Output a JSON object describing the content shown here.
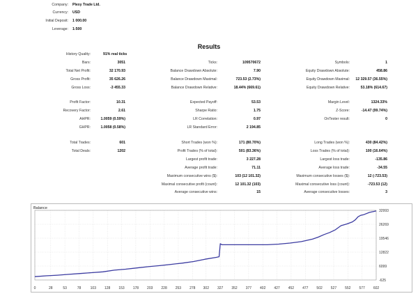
{
  "header": {
    "rows": [
      {
        "label": "Company:",
        "value": "Plexy Trade Ltd."
      },
      {
        "label": "Currency:",
        "value": "USD"
      },
      {
        "label": "Initial Deposit:",
        "value": "1 000.00"
      },
      {
        "label": "Leverage:",
        "value": "1:500"
      }
    ]
  },
  "results_title": "Results",
  "stats": {
    "history_quality": {
      "label": "History Quality:",
      "value": "91% real ticks"
    },
    "block1": [
      [
        {
          "label": "Bars:",
          "value": "3051"
        },
        {
          "label": "Ticks:",
          "value": "109570672"
        },
        {
          "label": "Symbols:",
          "value": "1"
        }
      ],
      [
        {
          "label": "Total Net Profit:",
          "value": "32 170.93"
        },
        {
          "label": "Balance Drawdown Absolute:",
          "value": "7.90"
        },
        {
          "label": "Equity Drawdown Absolute:",
          "value": "458.86"
        }
      ],
      [
        {
          "label": "Gross Profit:",
          "value": "35 626.26"
        },
        {
          "label": "Balance Drawdown Maximal:",
          "value": "723.53 (2.73%)"
        },
        {
          "label": "Equity Drawdown Maximal:",
          "value": "12 329.57 (36.55%)"
        }
      ],
      [
        {
          "label": "Gross Loss:",
          "value": "-3 455.33"
        },
        {
          "label": "Balance Drawdown Relative:",
          "value": "18.44% (669.61)"
        },
        {
          "label": "Equity Drawdown Relative:",
          "value": "53.18% (614.67)"
        }
      ]
    ],
    "block2": [
      [
        {
          "label": "Profit Factor:",
          "value": "10.31"
        },
        {
          "label": "Expected Payoff:",
          "value": "53.53"
        },
        {
          "label": "Margin Level:",
          "value": "1324.33%"
        }
      ],
      [
        {
          "label": "Recovery Factor:",
          "value": "2.61"
        },
        {
          "label": "Sharpe Ratio:",
          "value": "1.75"
        },
        {
          "label": "Z-Score:",
          "value": "-14.47 (99.74%)"
        }
      ],
      [
        {
          "label": "AHPR:",
          "value": "1.0059 (0.59%)"
        },
        {
          "label": "LR Correlation:",
          "value": "0.97"
        },
        {
          "label": "OnTester result:",
          "value": "0"
        }
      ],
      [
        {
          "label": "GHPR:",
          "value": "1.0058 (0.58%)"
        },
        {
          "label": "LR Standard Error:",
          "value": "2 194.85"
        },
        {
          "label": "",
          "value": ""
        }
      ]
    ],
    "block3": [
      [
        {
          "label": "Total Trades:",
          "value": "601"
        },
        {
          "label": "Short Trades (won %):",
          "value": "171 (80.70%)"
        },
        {
          "label": "Long Trades (won %):",
          "value": "430 (84.42%)"
        }
      ],
      [
        {
          "label": "Total Deals:",
          "value": "1202"
        },
        {
          "label": "Profit Trades (% of total):",
          "value": "501 (83.36%)"
        },
        {
          "label": "Loss Trades (% of total):",
          "value": "100 (16.64%)"
        }
      ],
      [
        {
          "label": "",
          "value": ""
        },
        {
          "label": "Largest profit trade:",
          "value": "3 227.28"
        },
        {
          "label": "Largest loss trade:",
          "value": "-135.86"
        }
      ],
      [
        {
          "label": "",
          "value": ""
        },
        {
          "label": "Average profit trade:",
          "value": "71.11"
        },
        {
          "label": "Average loss trade:",
          "value": "-34.55"
        }
      ],
      [
        {
          "label": "",
          "value": ""
        },
        {
          "label": "Maximum consecutive wins ($):",
          "value": "103 (12 101.32)"
        },
        {
          "label": "Maximum consecutive losses ($):",
          "value": "12 (-723.53)"
        }
      ],
      [
        {
          "label": "",
          "value": ""
        },
        {
          "label": "Maximal consecutive profit (count):",
          "value": "12 101.32 (103)"
        },
        {
          "label": "Maximal consecutive loss (count):",
          "value": "-723.53 (12)"
        }
      ],
      [
        {
          "label": "",
          "value": ""
        },
        {
          "label": "Average consecutive wins:",
          "value": "15"
        },
        {
          "label": "Average consecutive losses:",
          "value": "3"
        }
      ]
    ]
  },
  "chart_data": {
    "type": "line",
    "title": "Balance",
    "xlabel": "",
    "ylabel": "",
    "xlim": [
      0,
      602
    ],
    "ylim": [
      -625,
      32993
    ],
    "x_ticks": [
      "0",
      "28",
      "53",
      "78",
      "103",
      "128",
      "153",
      "178",
      "203",
      "228",
      "253",
      "278",
      "302",
      "327",
      "352",
      "377",
      "402",
      "427",
      "452",
      "477",
      "502",
      "527",
      "552",
      "577",
      "602"
    ],
    "y_ticks": [
      "32993",
      "26269",
      "19546",
      "12822",
      "6099",
      "-625"
    ],
    "grid": true,
    "series": [
      {
        "name": "",
        "color": "#3a3aa0",
        "x": [
          0,
          20,
          40,
          60,
          80,
          100,
          120,
          140,
          160,
          180,
          200,
          220,
          240,
          260,
          280,
          300,
          320,
          325,
          327,
          330,
          350,
          370,
          390,
          410,
          430,
          450,
          470,
          490,
          500,
          510,
          520,
          530,
          540,
          550,
          560,
          565,
          570,
          575,
          580,
          590,
          602
        ],
        "y": [
          1000,
          1400,
          1700,
          2100,
          2500,
          2900,
          3300,
          4100,
          4600,
          5200,
          5800,
          6300,
          6900,
          7500,
          8300,
          9400,
          10300,
          10600,
          16900,
          16400,
          16400,
          16400,
          16400,
          16400,
          16700,
          17200,
          17900,
          19100,
          20100,
          21300,
          22300,
          23600,
          25600,
          26400,
          27400,
          28400,
          29900,
          30600,
          30900,
          32000,
          32700
        ]
      }
    ]
  }
}
